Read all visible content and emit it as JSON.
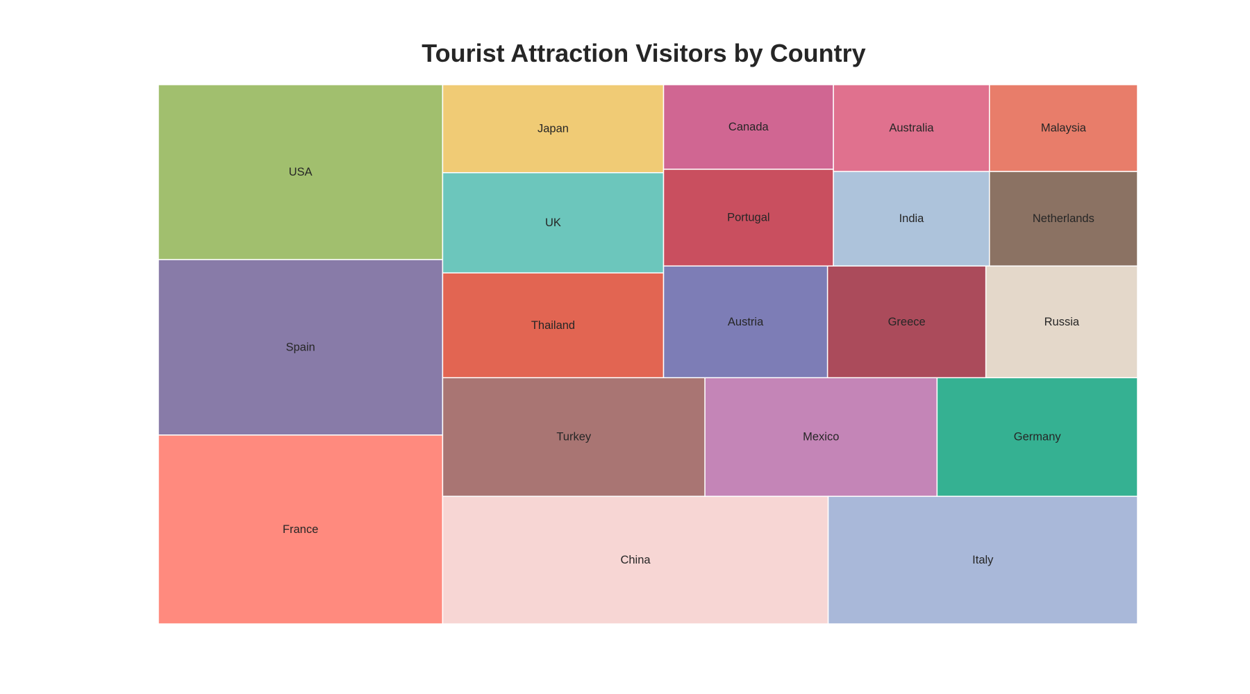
{
  "chart_data": {
    "type": "treemap",
    "title": "Tourist Attraction Visitors by Country",
    "items": [
      {
        "label": "USA",
        "value": 79.3,
        "color": "#a1bf6e"
      },
      {
        "label": "Spain",
        "value": 79.5,
        "color": "#887ba8"
      },
      {
        "label": "France",
        "value": 85.6,
        "color": "#ff8a7e"
      },
      {
        "label": "Japan",
        "value": 31.0,
        "color": "#f0cb75"
      },
      {
        "label": "UK",
        "value": 35.3,
        "color": "#6cc6bc"
      },
      {
        "label": "Thailand",
        "value": 36.9,
        "color": "#e26552"
      },
      {
        "label": "Canada",
        "value": 22.9,
        "color": "#d06692"
      },
      {
        "label": "Australia",
        "value": 21.6,
        "color": "#e0718e"
      },
      {
        "label": "Malaysia",
        "value": 20.5,
        "color": "#e87d6a"
      },
      {
        "label": "Portugal",
        "value": 26.2,
        "color": "#c94f5f"
      },
      {
        "label": "India",
        "value": 23.5,
        "color": "#adc3db"
      },
      {
        "label": "Netherlands",
        "value": 22.3,
        "color": "#8b7263"
      },
      {
        "label": "Austria",
        "value": 29.2,
        "color": "#7d7db6"
      },
      {
        "label": "Greece",
        "value": 28.2,
        "color": "#ab4b5b"
      },
      {
        "label": "Russia",
        "value": 27.0,
        "color": "#e4d8ca"
      },
      {
        "label": "Turkey",
        "value": 49.6,
        "color": "#a97573"
      },
      {
        "label": "Mexico",
        "value": 43.9,
        "color": "#c485b7"
      },
      {
        "label": "Germany",
        "value": 37.9,
        "color": "#35b192"
      },
      {
        "label": "China",
        "value": 78.4,
        "color": "#f7d6d4"
      },
      {
        "label": "Italy",
        "value": 62.9,
        "color": "#a9b8d9"
      }
    ]
  }
}
